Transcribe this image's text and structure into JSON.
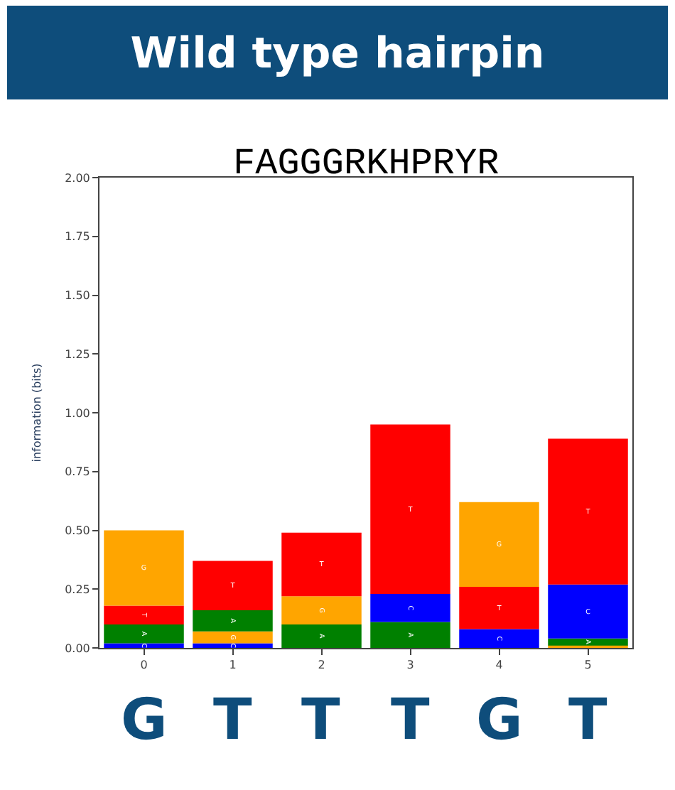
{
  "chart_data": {
    "type": "bar",
    "stacked": true,
    "title": "Wild type hairpin",
    "subtitle": "FAGGGRKHPRYR",
    "ylabel": "information (bits)",
    "categories": [
      "0",
      "1",
      "2",
      "3",
      "4",
      "5"
    ],
    "series": [
      {
        "colors": [
          "#0000ff",
          "#0000ff",
          "#008000",
          "#008000",
          "#0000ff",
          "#ffa500"
        ],
        "values": [
          0.02,
          0.02,
          0.1,
          0.11,
          0.08,
          0.01
        ],
        "value_labels": [
          "C",
          "C",
          "A",
          "A",
          "C",
          null
        ]
      },
      {
        "colors": [
          "#008000",
          "#ffa500",
          "#ffa500",
          "#0000ff",
          "#ff0000",
          "#008000"
        ],
        "values": [
          0.08,
          0.05,
          0.12,
          0.12,
          0.18,
          0.03
        ],
        "value_labels": [
          "A",
          "G",
          "G",
          "C",
          "T",
          "A"
        ]
      },
      {
        "colors": [
          "#ff0000",
          "#008000",
          "#ff0000",
          "#ff0000",
          "#ffa500",
          "#0000ff"
        ],
        "values": [
          0.08,
          0.09,
          0.27,
          0.72,
          0.36,
          0.23
        ],
        "value_labels": [
          "T",
          "A",
          "T",
          "T",
          "G",
          "C"
        ]
      },
      {
        "colors": [
          "#ffa500",
          "#ff0000",
          null,
          null,
          null,
          "#ff0000"
        ],
        "values": [
          0.32,
          0.21,
          null,
          null,
          null,
          0.62
        ],
        "value_labels": [
          "G",
          "T",
          null,
          null,
          null,
          "T"
        ]
      }
    ],
    "ylim": [
      0,
      2
    ],
    "yticks": [
      {
        "value": 0,
        "label": "0.00"
      },
      {
        "value": 0.25,
        "label": "0.25"
      },
      {
        "value": 0.5,
        "label": "0.50"
      },
      {
        "value": 0.75,
        "label": "0.75"
      },
      {
        "value": 1,
        "label": "1.00"
      },
      {
        "value": 1.25,
        "label": "1.25"
      },
      {
        "value": 1.5,
        "label": "1.50"
      },
      {
        "value": 1.75,
        "label": "1.75"
      },
      {
        "value": 2,
        "label": "2.00"
      }
    ],
    "annotations": [
      "G",
      "T",
      "T",
      "T",
      "G",
      "T"
    ]
  }
}
